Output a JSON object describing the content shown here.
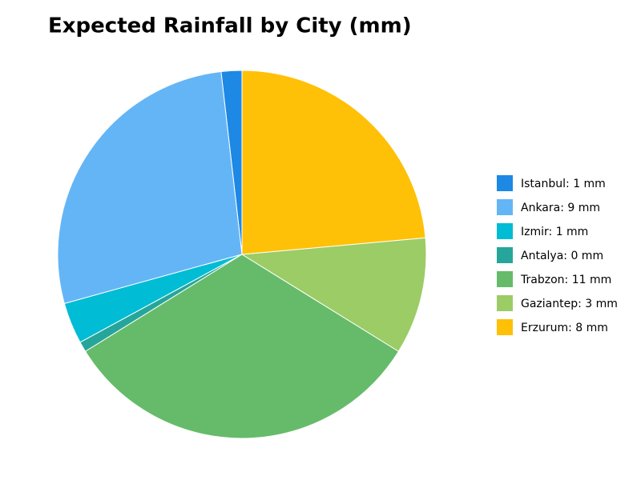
{
  "chart_data": {
    "type": "pie",
    "title": "Expected Rainfall by City (mm)",
    "categories": [
      "Istanbul",
      "Ankara",
      "Izmir",
      "Antalya",
      "Trabzon",
      "Gaziantep",
      "Erzurum"
    ],
    "values": [
      0.6,
      9.1,
      1.2,
      0.3,
      10.7,
      3.4,
      7.8
    ],
    "value_labels": [
      "1 mm",
      "9 mm",
      "1 mm",
      "0 mm",
      "11 mm",
      "3 mm",
      "8 mm"
    ],
    "colors": [
      "#1e88e5",
      "#64b5f6",
      "#00bcd4",
      "#26a69a",
      "#66bb6a",
      "#9ccc65",
      "#ffc107"
    ],
    "legend": "right"
  }
}
